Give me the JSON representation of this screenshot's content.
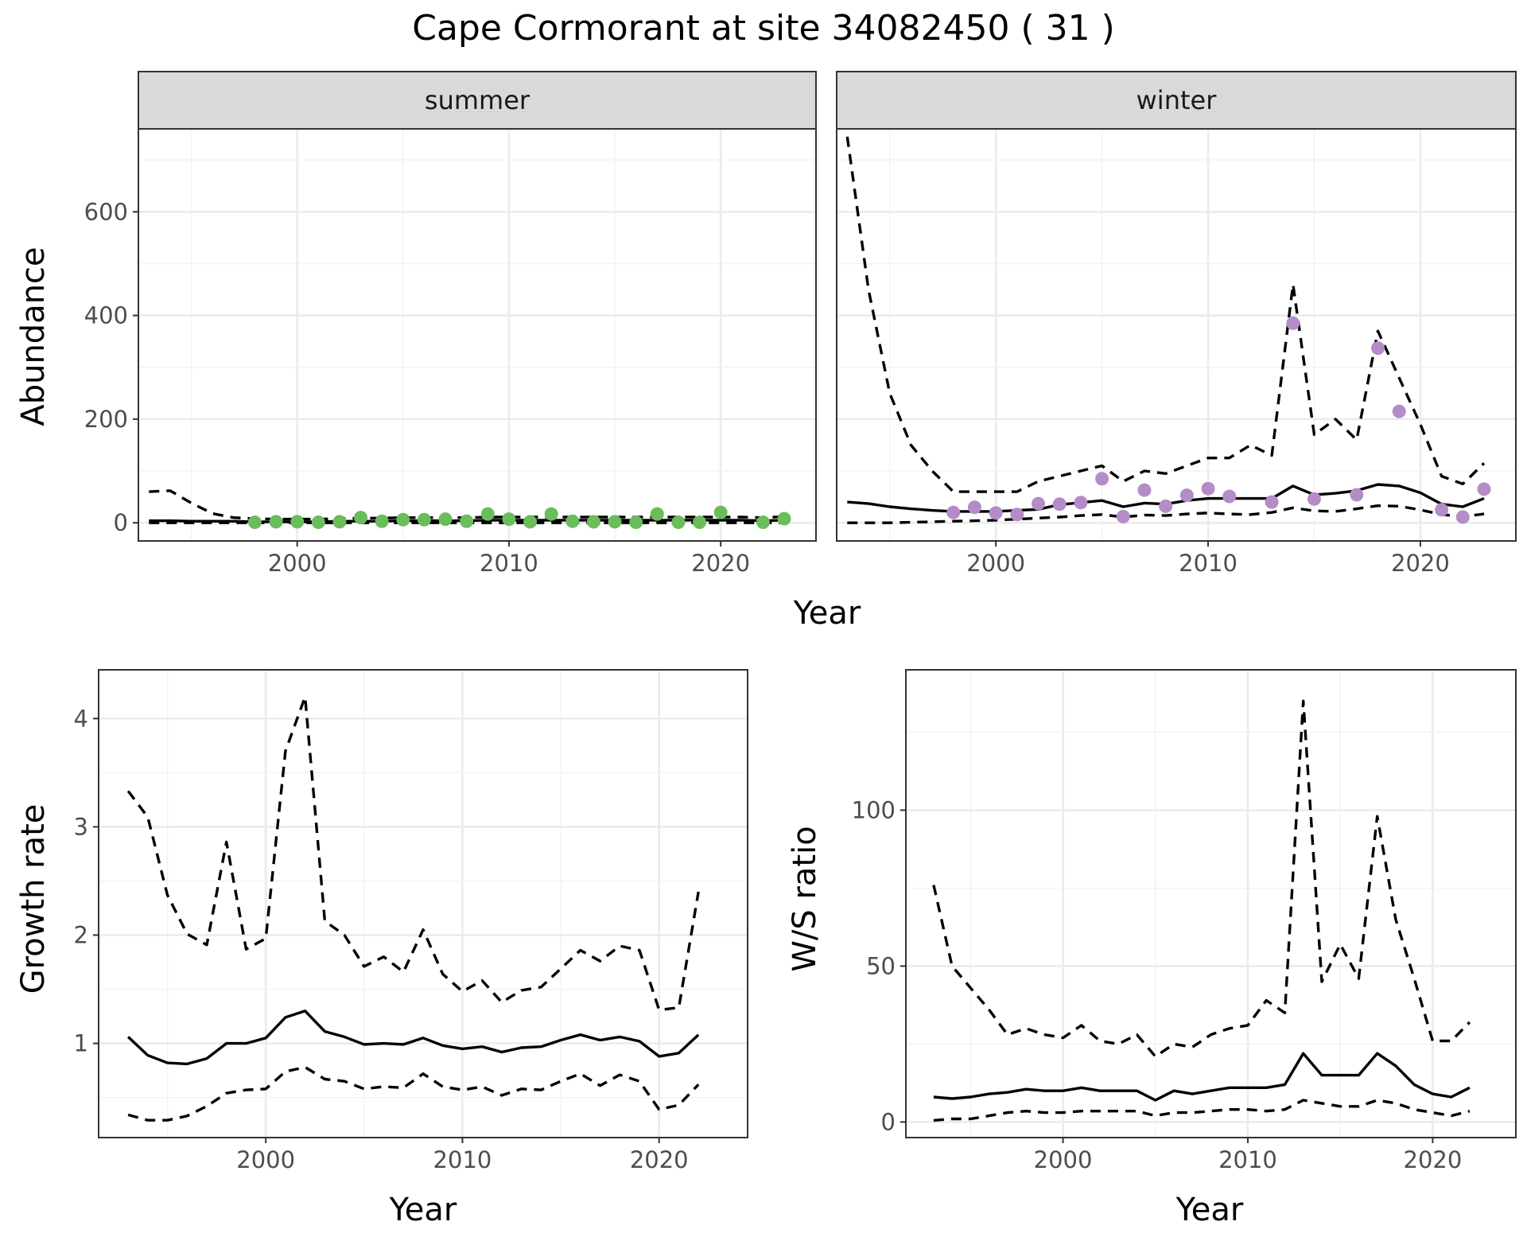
{
  "title": "Cape Cormorant at site 34082450 ( 31 )",
  "colors": {
    "summer_points": "#6abd5a",
    "winter_points": "#b48cc7",
    "strip_fill": "#d9d9d9",
    "lines": "#000000"
  },
  "chart_data": [
    {
      "id": "abundance",
      "type": "line",
      "ylabel": "Abundance",
      "xlabel": "Year",
      "xlim": [
        1992.5,
        2024.5
      ],
      "ylim": [
        -35,
        760
      ],
      "xticks": [
        2000,
        2010,
        2020
      ],
      "yticks": [
        0,
        200,
        400,
        600
      ],
      "grid": true,
      "facets": [
        {
          "label": "summer",
          "point_color": "#6abd5a",
          "x": [
            1993,
            1994,
            1995,
            1996,
            1997,
            1998,
            1999,
            2000,
            2001,
            2002,
            2003,
            2004,
            2005,
            2006,
            2007,
            2008,
            2009,
            2010,
            2011,
            2012,
            2013,
            2014,
            2015,
            2016,
            2017,
            2018,
            2019,
            2020,
            2021,
            2022,
            2023
          ],
          "estimate": [
            4,
            4,
            3,
            3,
            3,
            2,
            2,
            2,
            2,
            3,
            3,
            3,
            4,
            4,
            4,
            4,
            5,
            5,
            5,
            5,
            5,
            5,
            5,
            5,
            5,
            5,
            5,
            5,
            5,
            4,
            5
          ],
          "lower": [
            0,
            0,
            0,
            0,
            0,
            0,
            0,
            0,
            0,
            0,
            0,
            0,
            0,
            0,
            0,
            0,
            0,
            0,
            0,
            0,
            0,
            0,
            0,
            0,
            0,
            0,
            0,
            0,
            0,
            0,
            0
          ],
          "upper": [
            60,
            62,
            38,
            18,
            10,
            8,
            7,
            7,
            7,
            8,
            9,
            9,
            10,
            10,
            10,
            10,
            11,
            11,
            11,
            11,
            11,
            11,
            11,
            11,
            11,
            11,
            11,
            11,
            11,
            10,
            12
          ],
          "points": [
            {
              "x": 1998,
              "y": 1
            },
            {
              "x": 1999,
              "y": 2
            },
            {
              "x": 2000,
              "y": 2
            },
            {
              "x": 2001,
              "y": 1
            },
            {
              "x": 2002,
              "y": 2
            },
            {
              "x": 2003,
              "y": 10
            },
            {
              "x": 2004,
              "y": 3
            },
            {
              "x": 2005,
              "y": 6
            },
            {
              "x": 2006,
              "y": 6
            },
            {
              "x": 2007,
              "y": 7
            },
            {
              "x": 2008,
              "y": 3
            },
            {
              "x": 2009,
              "y": 17
            },
            {
              "x": 2010,
              "y": 7
            },
            {
              "x": 2011,
              "y": 2
            },
            {
              "x": 2012,
              "y": 17
            },
            {
              "x": 2013,
              "y": 3
            },
            {
              "x": 2014,
              "y": 2
            },
            {
              "x": 2015,
              "y": 2
            },
            {
              "x": 2016,
              "y": 1
            },
            {
              "x": 2017,
              "y": 17
            },
            {
              "x": 2018,
              "y": 1
            },
            {
              "x": 2019,
              "y": 1
            },
            {
              "x": 2020,
              "y": 20
            },
            {
              "x": 2022,
              "y": 1
            },
            {
              "x": 2023,
              "y": 8
            }
          ]
        },
        {
          "label": "winter",
          "point_color": "#b48cc7",
          "x": [
            1993,
            1994,
            1995,
            1996,
            1997,
            1998,
            1999,
            2000,
            2001,
            2002,
            2003,
            2004,
            2005,
            2006,
            2007,
            2008,
            2009,
            2010,
            2011,
            2012,
            2013,
            2014,
            2015,
            2016,
            2017,
            2018,
            2019,
            2020,
            2021,
            2022,
            2023
          ],
          "estimate": [
            40,
            37,
            31,
            27,
            24,
            22,
            22,
            22,
            24,
            26,
            35,
            39,
            43,
            31,
            38,
            36,
            43,
            47,
            47,
            47,
            47,
            71,
            54,
            57,
            62,
            74,
            71,
            58,
            36,
            31,
            47
          ],
          "lower": [
            0,
            0,
            0,
            1,
            2,
            3,
            4,
            5,
            7,
            9,
            11,
            14,
            16,
            11,
            15,
            14,
            17,
            19,
            17,
            16,
            20,
            29,
            23,
            22,
            27,
            33,
            32,
            25,
            16,
            12,
            17
          ],
          "upper": [
            745,
            450,
            250,
            150,
            100,
            60,
            60,
            60,
            60,
            80,
            90,
            100,
            110,
            80,
            100,
            95,
            110,
            125,
            125,
            150,
            130,
            460,
            170,
            200,
            160,
            370,
            280,
            190,
            90,
            75,
            115
          ],
          "points": [
            {
              "x": 1998,
              "y": 20
            },
            {
              "x": 1999,
              "y": 30
            },
            {
              "x": 2000,
              "y": 19
            },
            {
              "x": 2001,
              "y": 16
            },
            {
              "x": 2002,
              "y": 37
            },
            {
              "x": 2003,
              "y": 36
            },
            {
              "x": 2004,
              "y": 39
            },
            {
              "x": 2005,
              "y": 85
            },
            {
              "x": 2006,
              "y": 12
            },
            {
              "x": 2007,
              "y": 63
            },
            {
              "x": 2008,
              "y": 32
            },
            {
              "x": 2009,
              "y": 53
            },
            {
              "x": 2010,
              "y": 66
            },
            {
              "x": 2011,
              "y": 51
            },
            {
              "x": 2013,
              "y": 40
            },
            {
              "x": 2014,
              "y": 385
            },
            {
              "x": 2015,
              "y": 46
            },
            {
              "x": 2017,
              "y": 54
            },
            {
              "x": 2018,
              "y": 337
            },
            {
              "x": 2019,
              "y": 215
            },
            {
              "x": 2021,
              "y": 25
            },
            {
              "x": 2022,
              "y": 11
            },
            {
              "x": 2023,
              "y": 65
            }
          ]
        }
      ]
    },
    {
      "id": "growth",
      "type": "line",
      "ylabel": "Growth rate",
      "xlabel": "Year",
      "xlim": [
        1991.5,
        2024.5
      ],
      "ylim": [
        0.13,
        4.45
      ],
      "xticks": [
        2000,
        2010,
        2020
      ],
      "yticks": [
        1,
        2,
        3,
        4
      ],
      "grid": true,
      "x": [
        1993,
        1994,
        1995,
        1996,
        1997,
        1998,
        1999,
        2000,
        2001,
        2002,
        2003,
        2004,
        2005,
        2006,
        2007,
        2008,
        2009,
        2010,
        2011,
        2012,
        2013,
        2014,
        2015,
        2016,
        2017,
        2018,
        2019,
        2020,
        2021,
        2022
      ],
      "estimate": [
        1.06,
        0.89,
        0.82,
        0.81,
        0.86,
        1.0,
        1.0,
        1.05,
        1.24,
        1.3,
        1.11,
        1.06,
        0.99,
        1.0,
        0.99,
        1.05,
        0.98,
        0.95,
        0.97,
        0.92,
        0.96,
        0.97,
        1.03,
        1.08,
        1.03,
        1.06,
        1.02,
        0.88,
        0.91,
        1.08
      ],
      "lower": [
        0.34,
        0.29,
        0.29,
        0.33,
        0.42,
        0.54,
        0.57,
        0.58,
        0.74,
        0.78,
        0.67,
        0.65,
        0.58,
        0.6,
        0.59,
        0.72,
        0.6,
        0.57,
        0.6,
        0.52,
        0.58,
        0.57,
        0.65,
        0.72,
        0.61,
        0.71,
        0.65,
        0.39,
        0.43,
        0.62
      ],
      "upper": [
        3.33,
        3.09,
        2.37,
        2.01,
        1.91,
        2.86,
        1.87,
        1.97,
        3.7,
        4.2,
        2.13,
        2.0,
        1.71,
        1.8,
        1.66,
        2.05,
        1.64,
        1.48,
        1.58,
        1.38,
        1.49,
        1.52,
        1.69,
        1.86,
        1.76,
        1.9,
        1.86,
        1.31,
        1.33,
        2.4
      ]
    },
    {
      "id": "ws_ratio",
      "type": "line",
      "ylabel": "W/S ratio",
      "xlabel": "Year",
      "xlim": [
        1991.5,
        2024.5
      ],
      "ylim": [
        -5,
        145
      ],
      "xticks": [
        2000,
        2010,
        2020
      ],
      "yticks": [
        0,
        50,
        100
      ],
      "grid": true,
      "x": [
        1993,
        1994,
        1995,
        1996,
        1997,
        1998,
        1999,
        2000,
        2001,
        2002,
        2003,
        2004,
        2005,
        2006,
        2007,
        2008,
        2009,
        2010,
        2011,
        2012,
        2013,
        2014,
        2015,
        2016,
        2017,
        2018,
        2019,
        2020,
        2021,
        2022
      ],
      "estimate": [
        8,
        7.5,
        8,
        9,
        9.5,
        10.5,
        10,
        10,
        11,
        10,
        10,
        10,
        7,
        10,
        9,
        10,
        11,
        11,
        11,
        12,
        22,
        15,
        15,
        15,
        22,
        18,
        12,
        9,
        8,
        11
      ],
      "lower": [
        0.5,
        1,
        1,
        2,
        3,
        3.5,
        3,
        3,
        3.5,
        3.5,
        3.5,
        3.5,
        2,
        3,
        3,
        3.5,
        4,
        4,
        3.5,
        4,
        7,
        6,
        5,
        5,
        7,
        6,
        4,
        3,
        2,
        3.5
      ],
      "upper": [
        76,
        50,
        43,
        36,
        28,
        30,
        28,
        27,
        31,
        26,
        25,
        28,
        21,
        25,
        24,
        28,
        30,
        31,
        39,
        35,
        135,
        45,
        57,
        46,
        98,
        65,
        46,
        26,
        26,
        32
      ]
    }
  ]
}
